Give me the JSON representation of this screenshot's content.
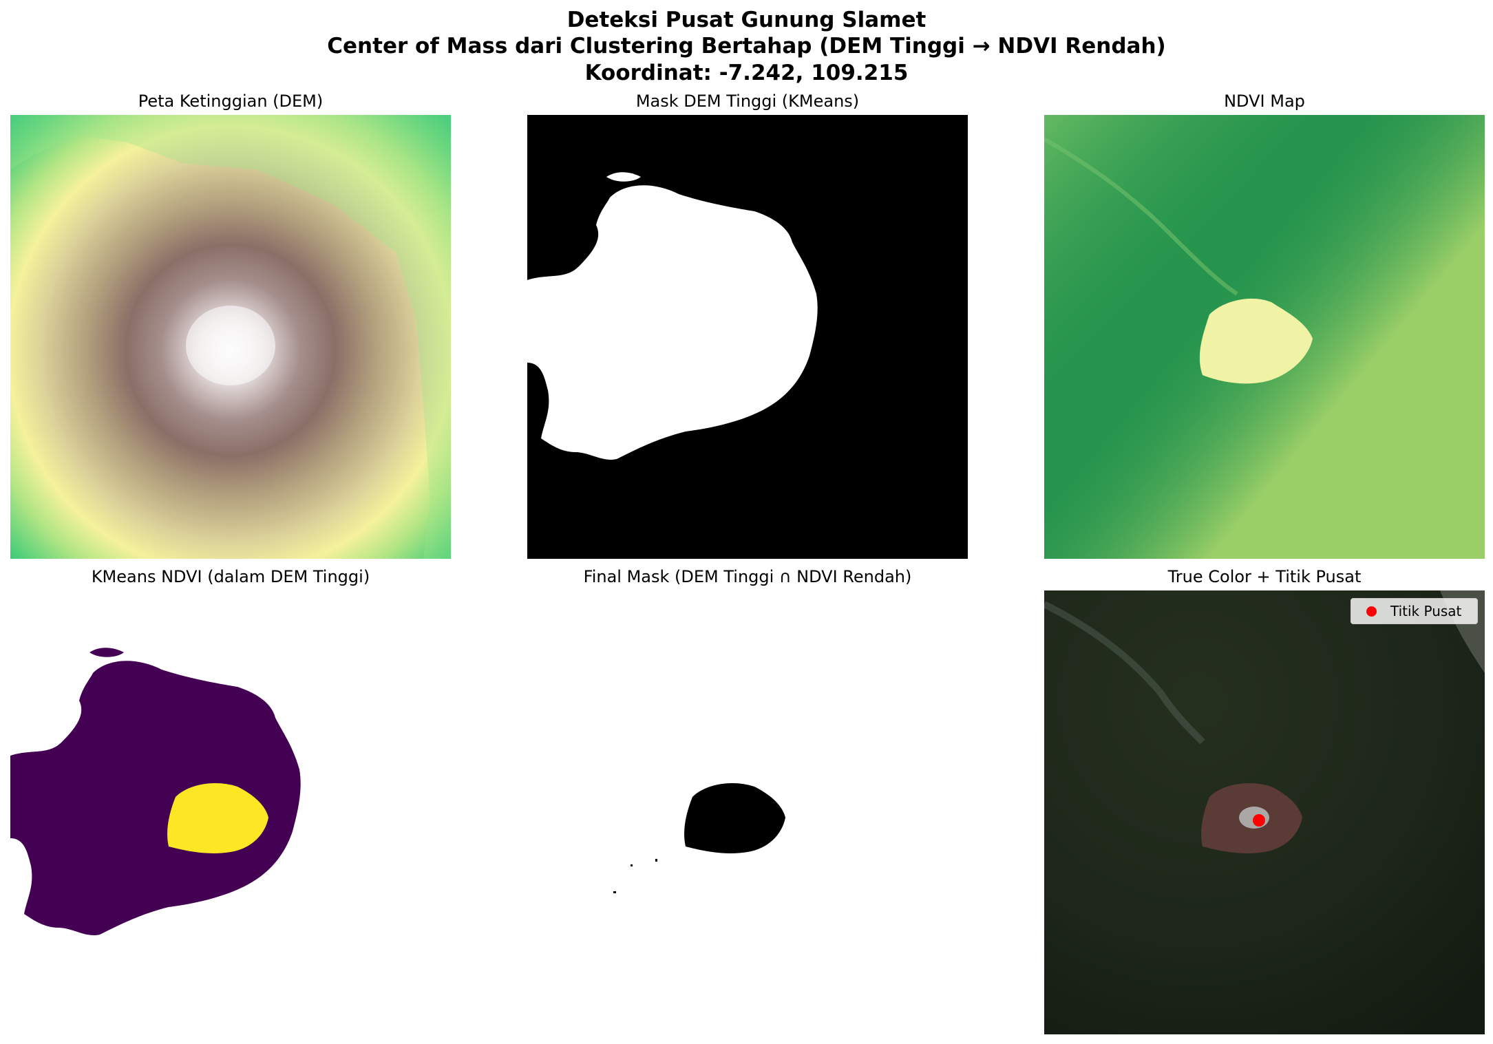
{
  "figure": {
    "title_line1": "Deteksi Pusat Gunung Slamet",
    "title_line2": "Center of Mass dari Clustering Bertahap (DEM Tinggi → NDVI Rendah)",
    "title_line3": "Koordinat: -7.242, 109.215"
  },
  "panels": {
    "dem": {
      "title": "Peta Ketinggian (DEM)"
    },
    "dem_mask": {
      "title": "Mask DEM Tinggi (KMeans)"
    },
    "ndvi": {
      "title": "NDVI Map"
    },
    "kmeans_ndvi": {
      "title": "KMeans NDVI (dalam DEM Tinggi)"
    },
    "final_mask": {
      "title": "Final Mask (DEM Tinggi ∩ NDVI Rendah)"
    },
    "true_color": {
      "title": "True Color + Titik Pusat"
    }
  },
  "legend": {
    "label": "Titik Pusat",
    "color": "#ff0000"
  },
  "colors": {
    "kmeans_low": "#440154",
    "kmeans_high": "#fde725",
    "ndvi_green": "#2a9a52",
    "ndvi_summit": "#f0f2a6"
  }
}
